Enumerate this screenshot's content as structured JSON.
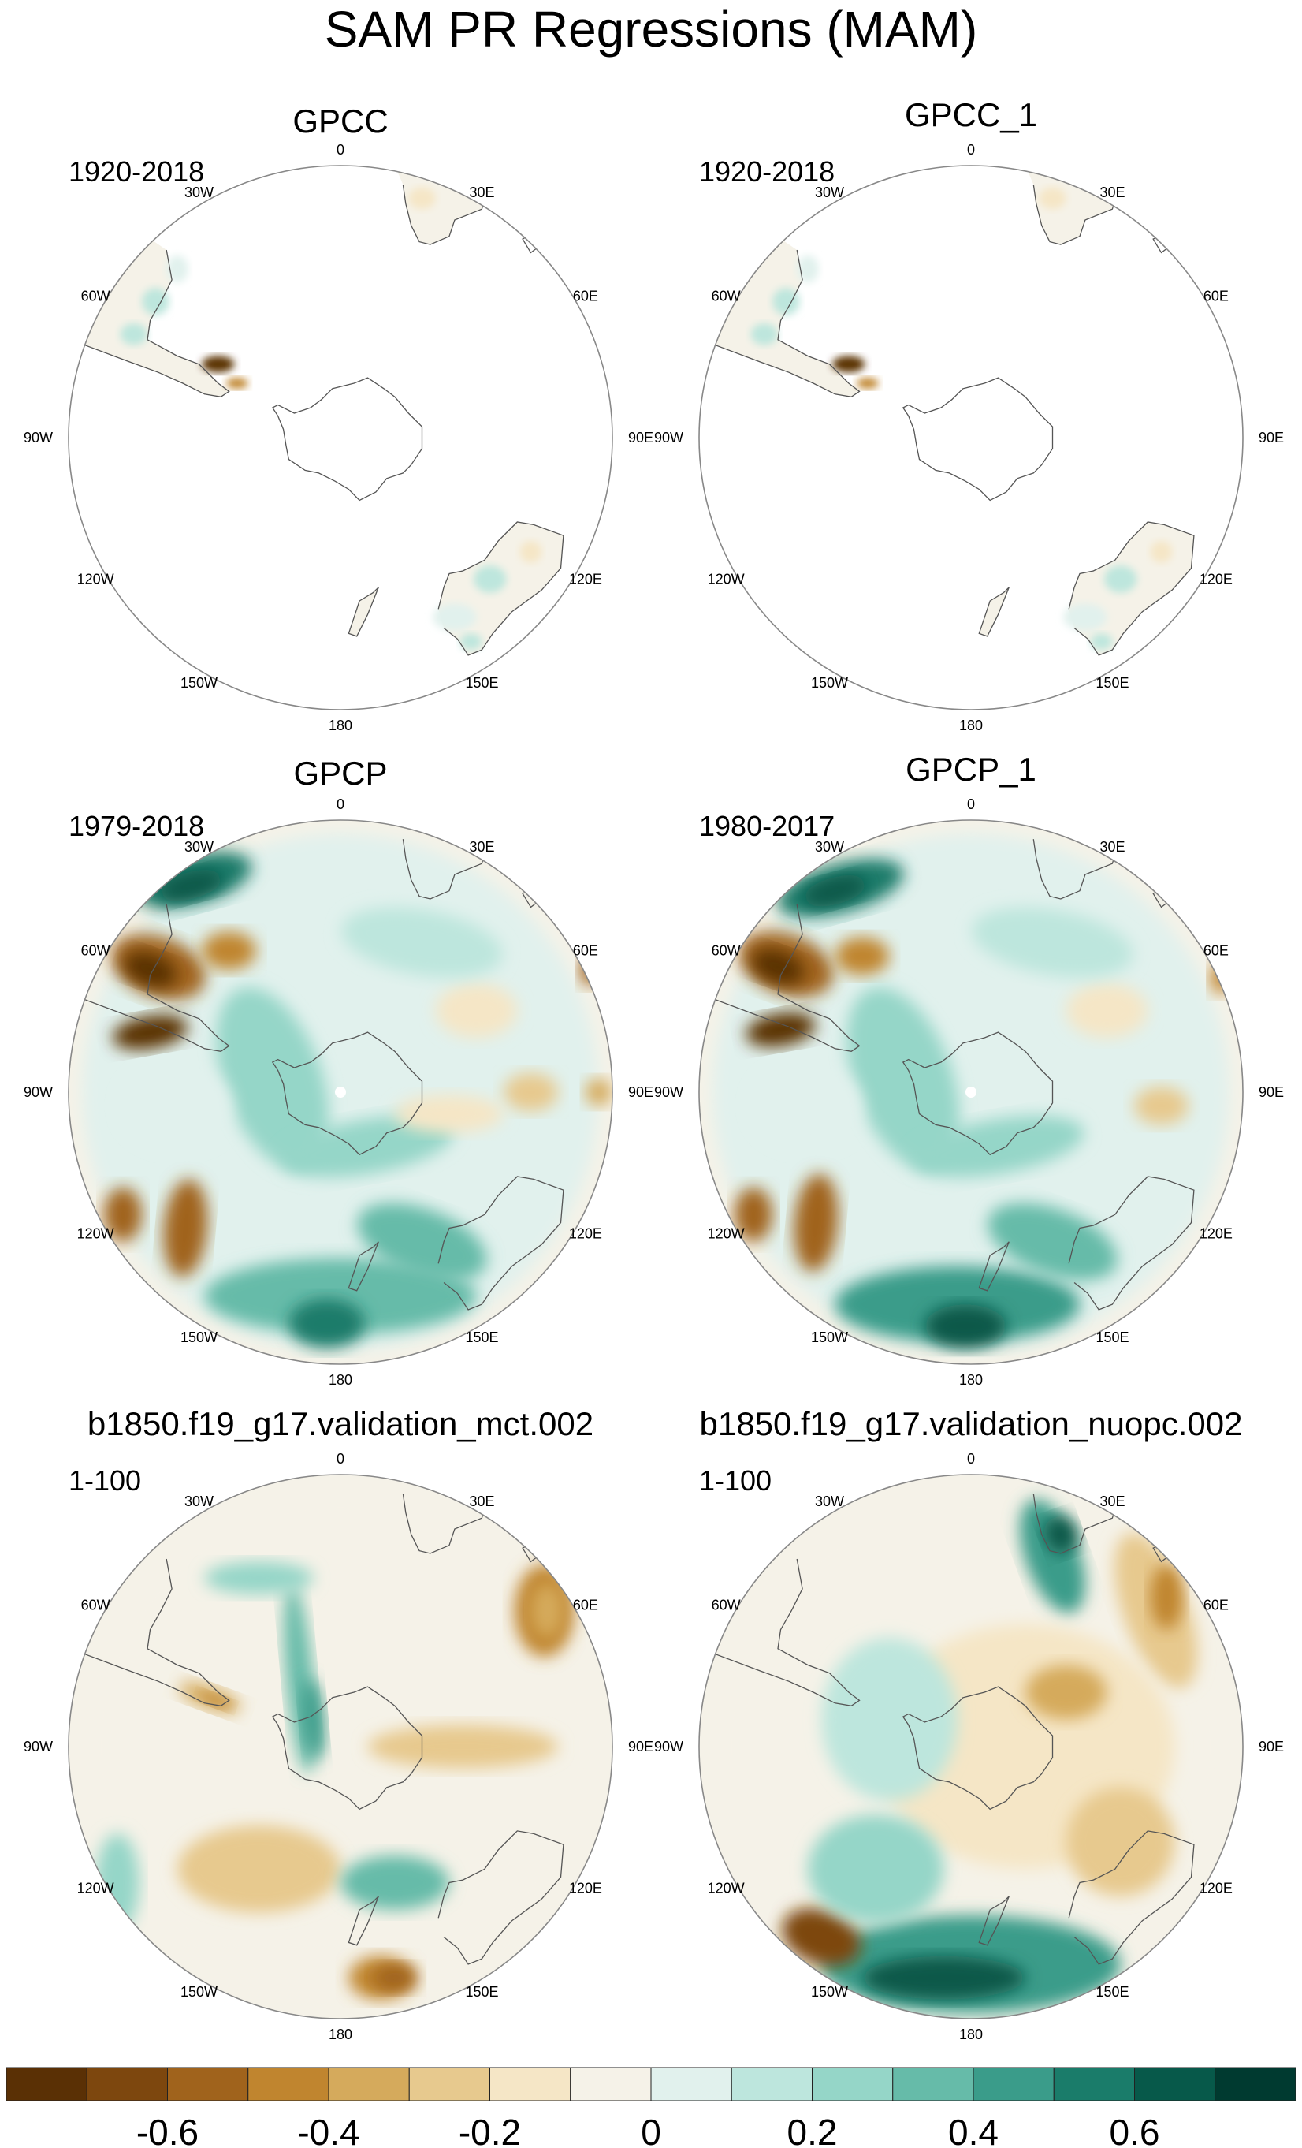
{
  "title": "SAM PR Regressions (MAM)",
  "longitude_labels": [
    "0",
    "30E",
    "60E",
    "90E",
    "120E",
    "150E",
    "180",
    "150W",
    "120W",
    "90W",
    "60W",
    "30W"
  ],
  "panels": [
    {
      "title": "GPCC",
      "years": "1920-2018",
      "field": "land-only"
    },
    {
      "title": "GPCC_1",
      "years": "1920-2018",
      "field": "land-only"
    },
    {
      "title": "GPCP",
      "years": "1979-2018",
      "field": "global"
    },
    {
      "title": "GPCP_1",
      "years": "1980-2017",
      "field": "global"
    },
    {
      "title": "b1850.f19_g17.validation_mct.002",
      "years": "1-100",
      "field": "global"
    },
    {
      "title": "b1850.f19_g17.validation_nuopc.002",
      "years": "1-100",
      "field": "global"
    }
  ],
  "colorbar": {
    "colors": [
      "#5a3005",
      "#7d470e",
      "#a0631c",
      "#c0852f",
      "#d5aa5c",
      "#e7c98e",
      "#f5e6c6",
      "#f5f2e8",
      "#e1f1ed",
      "#bde6dd",
      "#95d6c8",
      "#66bba9",
      "#3a9c8a",
      "#1a7c6a",
      "#07594a",
      "#003a30"
    ],
    "tick_labels": [
      "-0.6",
      "-0.4",
      "-0.2",
      "0",
      "0.2",
      "0.4",
      "0.6"
    ]
  },
  "colors": {
    "map_background": "#f5f2e8",
    "coastline": "#555555",
    "border": "#888888"
  }
}
